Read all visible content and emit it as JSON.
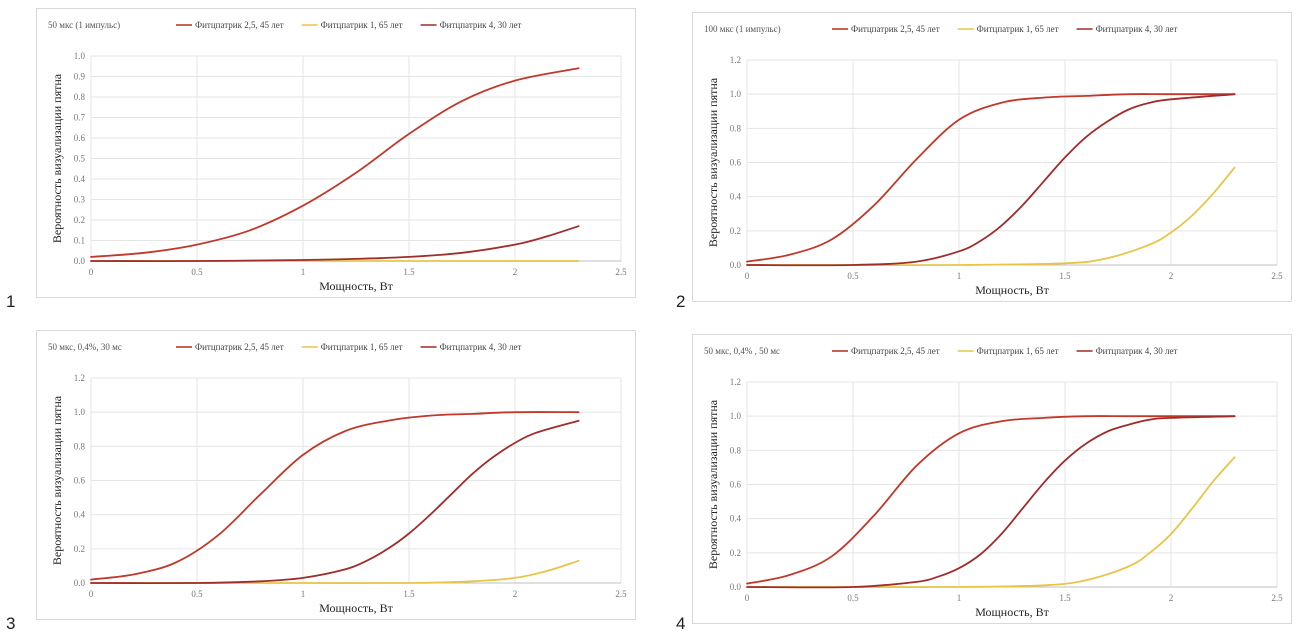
{
  "panel_numbers": [
    "1",
    "2",
    "3",
    "4"
  ],
  "series_names": [
    "Фитцпатрик 2,5, 45 лет",
    "Фитцпатрик 1, 65 лет",
    "Фитцпатрик 4, 30 лет"
  ],
  "series_colors": [
    "#c0392b",
    "#e8c547",
    "#a02c2c"
  ],
  "chart_data": [
    {
      "type": "line",
      "title": "50 мкс (1 импульс)",
      "xlabel": "Мощность, Вт",
      "ylabel": "Вероятность визуализации пятна",
      "xlim": [
        0,
        2.5
      ],
      "ylim": [
        0,
        1.0
      ],
      "xticks": [
        "0",
        "0.5",
        "1",
        "1.5",
        "2",
        "2.5"
      ],
      "yticks": [
        "0.0",
        "0.1",
        "0.2",
        "0.3",
        "0.4",
        "0.5",
        "0.6",
        "0.7",
        "0.8",
        "0.9",
        "1.0"
      ],
      "grid": true,
      "legend": "top",
      "series": [
        {
          "name": "Фитцпатрик 2,5, 45 лет",
          "color": "#c0392b",
          "x": [
            0,
            0.25,
            0.5,
            0.75,
            1.0,
            1.25,
            1.5,
            1.75,
            2.0,
            2.3
          ],
          "y": [
            0.02,
            0.04,
            0.08,
            0.15,
            0.27,
            0.43,
            0.62,
            0.78,
            0.88,
            0.94
          ]
        },
        {
          "name": "Фитцпатрик 1, 65 лет",
          "color": "#e8c547",
          "x": [
            0,
            0.5,
            1.0,
            1.5,
            2.0,
            2.3
          ],
          "y": [
            0.0,
            0.0,
            0.0,
            0.0,
            0.0,
            0.0
          ]
        },
        {
          "name": "Фитцпатрик 4, 30 лет",
          "color": "#a02c2c",
          "x": [
            0,
            0.5,
            1.0,
            1.25,
            1.5,
            1.75,
            2.0,
            2.15,
            2.3
          ],
          "y": [
            0.0,
            0.0,
            0.005,
            0.01,
            0.02,
            0.04,
            0.08,
            0.12,
            0.17
          ]
        }
      ]
    },
    {
      "type": "line",
      "title": "100 мкс (1 импульс)",
      "xlabel": "Мощность, Вт",
      "ylabel": "Вероятность визуализации пятна",
      "xlim": [
        0,
        2.5
      ],
      "ylim": [
        0,
        1.2
      ],
      "xticks": [
        "0",
        "0.5",
        "1",
        "1.5",
        "2",
        "2.5"
      ],
      "yticks": [
        "0.0",
        "0.2",
        "0.4",
        "0.6",
        "0.8",
        "1.0",
        "1.2"
      ],
      "grid": true,
      "legend": "top",
      "series": [
        {
          "name": "Фитцпатрик 2,5, 45 лет",
          "color": "#c0392b",
          "x": [
            0,
            0.2,
            0.4,
            0.6,
            0.8,
            1.0,
            1.2,
            1.4,
            1.6,
            1.8,
            2.0,
            2.3
          ],
          "y": [
            0.02,
            0.06,
            0.15,
            0.35,
            0.62,
            0.85,
            0.95,
            0.98,
            0.99,
            1.0,
            1.0,
            1.0
          ]
        },
        {
          "name": "Фитцпатрик 1, 65 лет",
          "color": "#e8c547",
          "x": [
            0,
            0.5,
            1.0,
            1.5,
            1.7,
            1.9,
            2.0,
            2.1,
            2.2,
            2.3
          ],
          "y": [
            0.0,
            0.0,
            0.0,
            0.01,
            0.04,
            0.12,
            0.19,
            0.29,
            0.42,
            0.57
          ]
        },
        {
          "name": "Фитцпатрик 4, 30 лет",
          "color": "#a02c2c",
          "x": [
            0,
            0.5,
            0.8,
            1.0,
            1.1,
            1.2,
            1.3,
            1.4,
            1.5,
            1.6,
            1.7,
            1.8,
            1.9,
            2.0,
            2.3
          ],
          "y": [
            0.0,
            0.0,
            0.02,
            0.08,
            0.14,
            0.23,
            0.35,
            0.49,
            0.63,
            0.75,
            0.84,
            0.91,
            0.95,
            0.97,
            1.0
          ]
        }
      ]
    },
    {
      "type": "line",
      "title": "50 мкс, 0,4%, 30 мс",
      "xlabel": "Мощность, Вт",
      "ylabel": "Вероятность визуализации пятна",
      "xlim": [
        0,
        2.5
      ],
      "ylim": [
        0,
        1.2
      ],
      "xticks": [
        "0",
        "0.5",
        "1",
        "1.5",
        "2",
        "2.5"
      ],
      "yticks": [
        "0.0",
        "0.2",
        "0.4",
        "0.6",
        "0.8",
        "1.0",
        "1.2"
      ],
      "grid": true,
      "legend": "top",
      "series": [
        {
          "name": "Фитцпатрик 2,5, 45 лет",
          "color": "#c0392b",
          "x": [
            0,
            0.2,
            0.4,
            0.6,
            0.8,
            1.0,
            1.2,
            1.4,
            1.6,
            1.8,
            2.0,
            2.3
          ],
          "y": [
            0.02,
            0.05,
            0.12,
            0.28,
            0.52,
            0.75,
            0.89,
            0.95,
            0.98,
            0.99,
            1.0,
            1.0
          ]
        },
        {
          "name": "Фитцпатрик 1, 65 лет",
          "color": "#e8c547",
          "x": [
            0,
            0.5,
            1.0,
            1.5,
            1.8,
            2.0,
            2.15,
            2.3
          ],
          "y": [
            0.0,
            0.0,
            0.0,
            0.0,
            0.01,
            0.03,
            0.07,
            0.13
          ]
        },
        {
          "name": "Фитцпатрик 4, 30 лет",
          "color": "#a02c2c",
          "x": [
            0,
            0.5,
            0.8,
            1.0,
            1.2,
            1.3,
            1.4,
            1.5,
            1.6,
            1.7,
            1.8,
            1.9,
            2.0,
            2.1,
            2.3
          ],
          "y": [
            0.0,
            0.0,
            0.01,
            0.03,
            0.08,
            0.13,
            0.2,
            0.29,
            0.4,
            0.52,
            0.64,
            0.74,
            0.82,
            0.88,
            0.95
          ]
        }
      ]
    },
    {
      "type": "line",
      "title": "50 мкс, 0,4% , 50 мс",
      "xlabel": "Мощность, Вт",
      "ylabel": "Вероятность визуализации пятна",
      "xlim": [
        0,
        2.5
      ],
      "ylim": [
        0,
        1.2
      ],
      "xticks": [
        "0",
        "0.5",
        "1",
        "1.5",
        "2",
        "2.5"
      ],
      "yticks": [
        "0.0",
        "0.2",
        "0.4",
        "0.6",
        "0.8",
        "1.0",
        "1.2"
      ],
      "grid": true,
      "legend": "top",
      "series": [
        {
          "name": "Фитцпатрик 2,5, 45 лет",
          "color": "#c0392b",
          "x": [
            0,
            0.2,
            0.4,
            0.6,
            0.8,
            1.0,
            1.2,
            1.4,
            1.6,
            1.8,
            2.0,
            2.3
          ],
          "y": [
            0.02,
            0.07,
            0.18,
            0.42,
            0.71,
            0.9,
            0.97,
            0.99,
            1.0,
            1.0,
            1.0,
            1.0
          ]
        },
        {
          "name": "Фитцпатрик 1, 65 лет",
          "color": "#e8c547",
          "x": [
            0,
            0.5,
            1.0,
            1.4,
            1.6,
            1.8,
            1.9,
            2.0,
            2.1,
            2.2,
            2.3
          ],
          "y": [
            0.0,
            0.0,
            0.0,
            0.01,
            0.04,
            0.12,
            0.2,
            0.31,
            0.46,
            0.62,
            0.76
          ]
        },
        {
          "name": "Фитцпатрик 4, 30 лет",
          "color": "#a02c2c",
          "x": [
            0,
            0.5,
            0.8,
            0.9,
            1.0,
            1.1,
            1.2,
            1.3,
            1.4,
            1.5,
            1.6,
            1.7,
            1.8,
            1.9,
            2.0,
            2.3
          ],
          "y": [
            0.0,
            0.0,
            0.03,
            0.06,
            0.11,
            0.19,
            0.31,
            0.46,
            0.61,
            0.74,
            0.84,
            0.91,
            0.95,
            0.98,
            0.99,
            1.0
          ]
        }
      ]
    }
  ]
}
